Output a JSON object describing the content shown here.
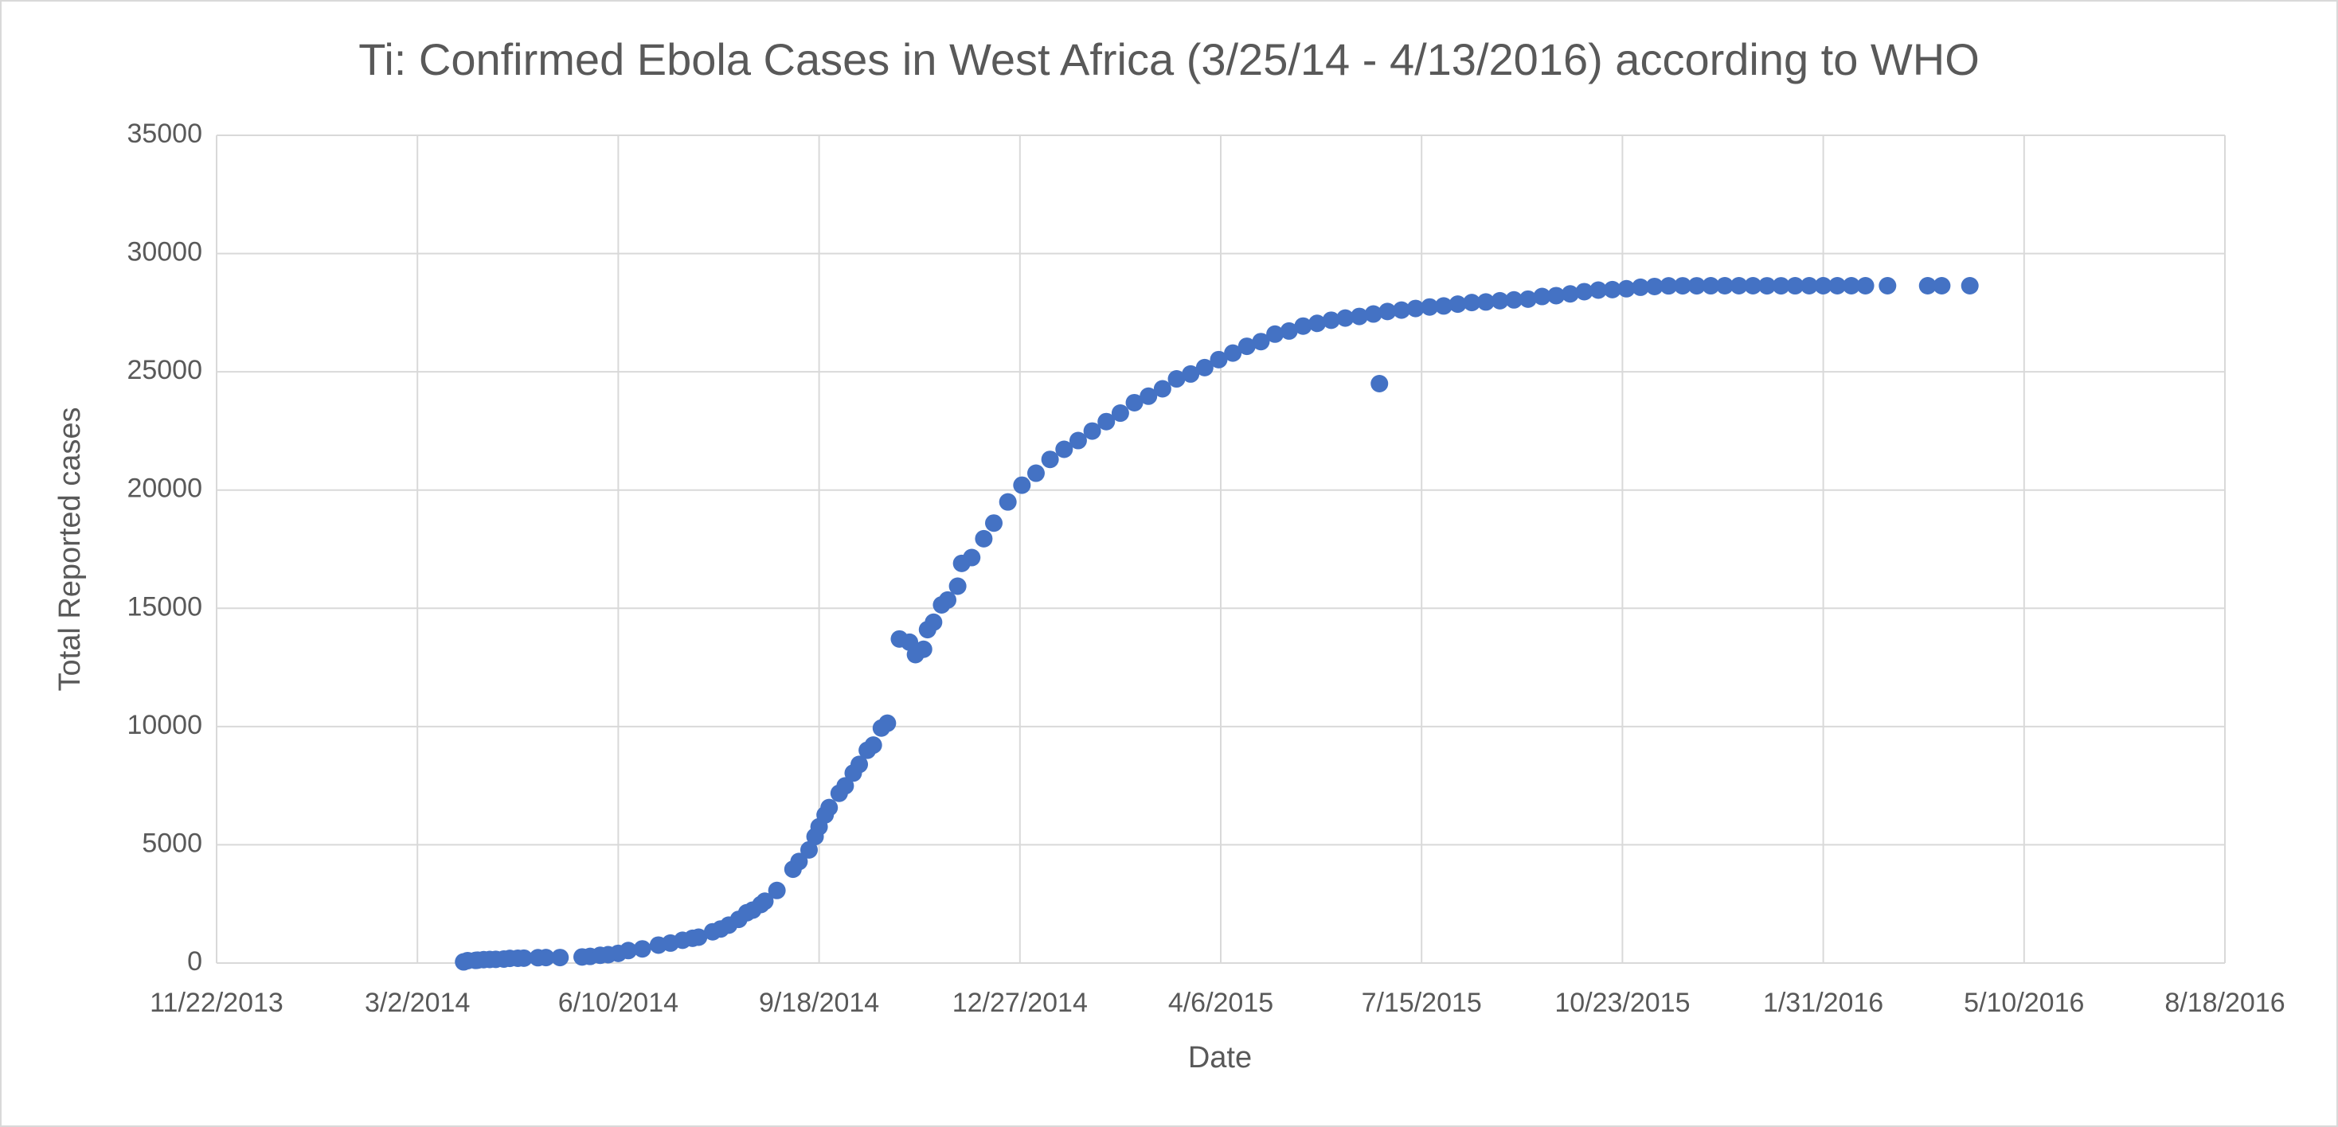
{
  "chart_data": {
    "type": "scatter",
    "title": "Ti: Confirmed Ebola Cases in West Africa (3/25/14 - 4/13/2016) according to WHO",
    "x_label": "Date",
    "y_label": "Total Reported cases",
    "color": "#4472c4",
    "grid": true,
    "xlim": [
      "2013-11-22",
      "2016-08-18"
    ],
    "xticks": [
      {
        "value": "2013-11-22",
        "label": "11/22/2013"
      },
      {
        "value": "2014-03-02",
        "label": "3/2/2014"
      },
      {
        "value": "2014-06-10",
        "label": "6/10/2014"
      },
      {
        "value": "2014-09-18",
        "label": "9/18/2014"
      },
      {
        "value": "2014-12-27",
        "label": "12/27/2014"
      },
      {
        "value": "2015-04-06",
        "label": "4/6/2015"
      },
      {
        "value": "2015-07-15",
        "label": "7/15/2015"
      },
      {
        "value": "2015-10-23",
        "label": "10/23/2015"
      },
      {
        "value": "2016-01-31",
        "label": "1/31/2016"
      },
      {
        "value": "2016-05-10",
        "label": "5/10/2016"
      },
      {
        "value": "2016-08-18",
        "label": "8/18/2016"
      }
    ],
    "ylim": [
      0,
      35000
    ],
    "yticks": [
      0,
      5000,
      10000,
      15000,
      20000,
      25000,
      30000,
      35000
    ],
    "x": [
      "2014-03-25",
      "2014-03-27",
      "2014-03-31",
      "2014-04-01",
      "2014-04-04",
      "2014-04-07",
      "2014-04-10",
      "2014-04-14",
      "2014-04-17",
      "2014-04-21",
      "2014-04-24",
      "2014-05-01",
      "2014-05-05",
      "2014-05-12",
      "2014-05-23",
      "2014-05-27",
      "2014-06-01",
      "2014-06-05",
      "2014-06-10",
      "2014-06-15",
      "2014-06-22",
      "2014-06-30",
      "2014-07-06",
      "2014-07-12",
      "2014-07-17",
      "2014-07-20",
      "2014-07-27",
      "2014-07-31",
      "2014-08-04",
      "2014-08-09",
      "2014-08-13",
      "2014-08-16",
      "2014-08-20",
      "2014-08-22",
      "2014-08-28",
      "2014-09-05",
      "2014-09-08",
      "2014-09-13",
      "2014-09-16",
      "2014-09-18",
      "2014-09-21",
      "2014-09-23",
      "2014-09-28",
      "2014-10-01",
      "2014-10-05",
      "2014-10-08",
      "2014-10-12",
      "2014-10-15",
      "2014-10-19",
      "2014-10-22",
      "2014-10-28",
      "2014-11-02",
      "2014-11-05",
      "2014-11-09",
      "2014-11-11",
      "2014-11-14",
      "2014-11-18",
      "2014-11-21",
      "2014-11-26",
      "2014-11-28",
      "2014-12-03",
      "2014-12-09",
      "2014-12-14",
      "2014-12-21",
      "2014-12-28",
      "2015-01-04",
      "2015-01-11",
      "2015-01-18",
      "2015-01-25",
      "2015-02-01",
      "2015-02-08",
      "2015-02-15",
      "2015-02-22",
      "2015-03-01",
      "2015-03-08",
      "2015-03-15",
      "2015-03-22",
      "2015-03-29",
      "2015-04-05",
      "2015-04-12",
      "2015-04-19",
      "2015-04-26",
      "2015-05-03",
      "2015-05-10",
      "2015-05-17",
      "2015-05-24",
      "2015-05-31",
      "2015-06-07",
      "2015-06-14",
      "2015-06-21",
      "2015-06-24",
      "2015-06-28",
      "2015-07-05",
      "2015-07-12",
      "2015-07-19",
      "2015-07-26",
      "2015-08-02",
      "2015-08-09",
      "2015-08-16",
      "2015-08-23",
      "2015-08-30",
      "2015-09-06",
      "2015-09-13",
      "2015-09-20",
      "2015-09-27",
      "2015-10-04",
      "2015-10-11",
      "2015-10-18",
      "2015-10-25",
      "2015-11-01",
      "2015-11-08",
      "2015-11-15",
      "2015-11-22",
      "2015-11-29",
      "2015-12-06",
      "2015-12-13",
      "2015-12-20",
      "2015-12-27",
      "2016-01-03",
      "2016-01-10",
      "2016-01-17",
      "2016-01-24",
      "2016-01-31",
      "2016-02-07",
      "2016-02-14",
      "2016-02-21",
      "2016-03-03",
      "2016-03-23",
      "2016-03-30",
      "2016-04-13"
    ],
    "values": [
      49,
      103,
      112,
      122,
      143,
      151,
      157,
      168,
      197,
      203,
      208,
      226,
      231,
      233,
      258,
      281,
      328,
      354,
      410,
      528,
      599,
      759,
      844,
      964,
      1048,
      1093,
      1323,
      1440,
      1603,
      1848,
      2127,
      2240,
      2473,
      2615,
      3069,
      3967,
      4293,
      4784,
      5347,
      5762,
      6263,
      6574,
      7178,
      7492,
      8033,
      8399,
      8997,
      9216,
      9936,
      10141,
      13703,
      13567,
      13042,
      13268,
      14098,
      14413,
      15145,
      15351,
      15935,
      16899,
      17145,
      17942,
      18603,
      19497,
      20206,
      20712,
      21296,
      21724,
      22092,
      22495,
      22894,
      23253,
      23694,
      23969,
      24282,
      24701,
      24907,
      25178,
      25515,
      25791,
      26079,
      26277,
      26593,
      26724,
      26933,
      27049,
      27181,
      27273,
      27341,
      27443,
      24500,
      27550,
      27609,
      27678,
      27741,
      27784,
      27862,
      27929,
      27952,
      28005,
      28041,
      28073,
      28183,
      28220,
      28295,
      28388,
      28454,
      28476,
      28512,
      28575,
      28607,
      28634,
      28637,
      28637,
      28638,
      28640,
      28640,
      28640,
      28637,
      28637,
      28638,
      28639,
      28639,
      28639,
      28639,
      28639,
      28639,
      28639,
      28639,
      28639
    ]
  }
}
